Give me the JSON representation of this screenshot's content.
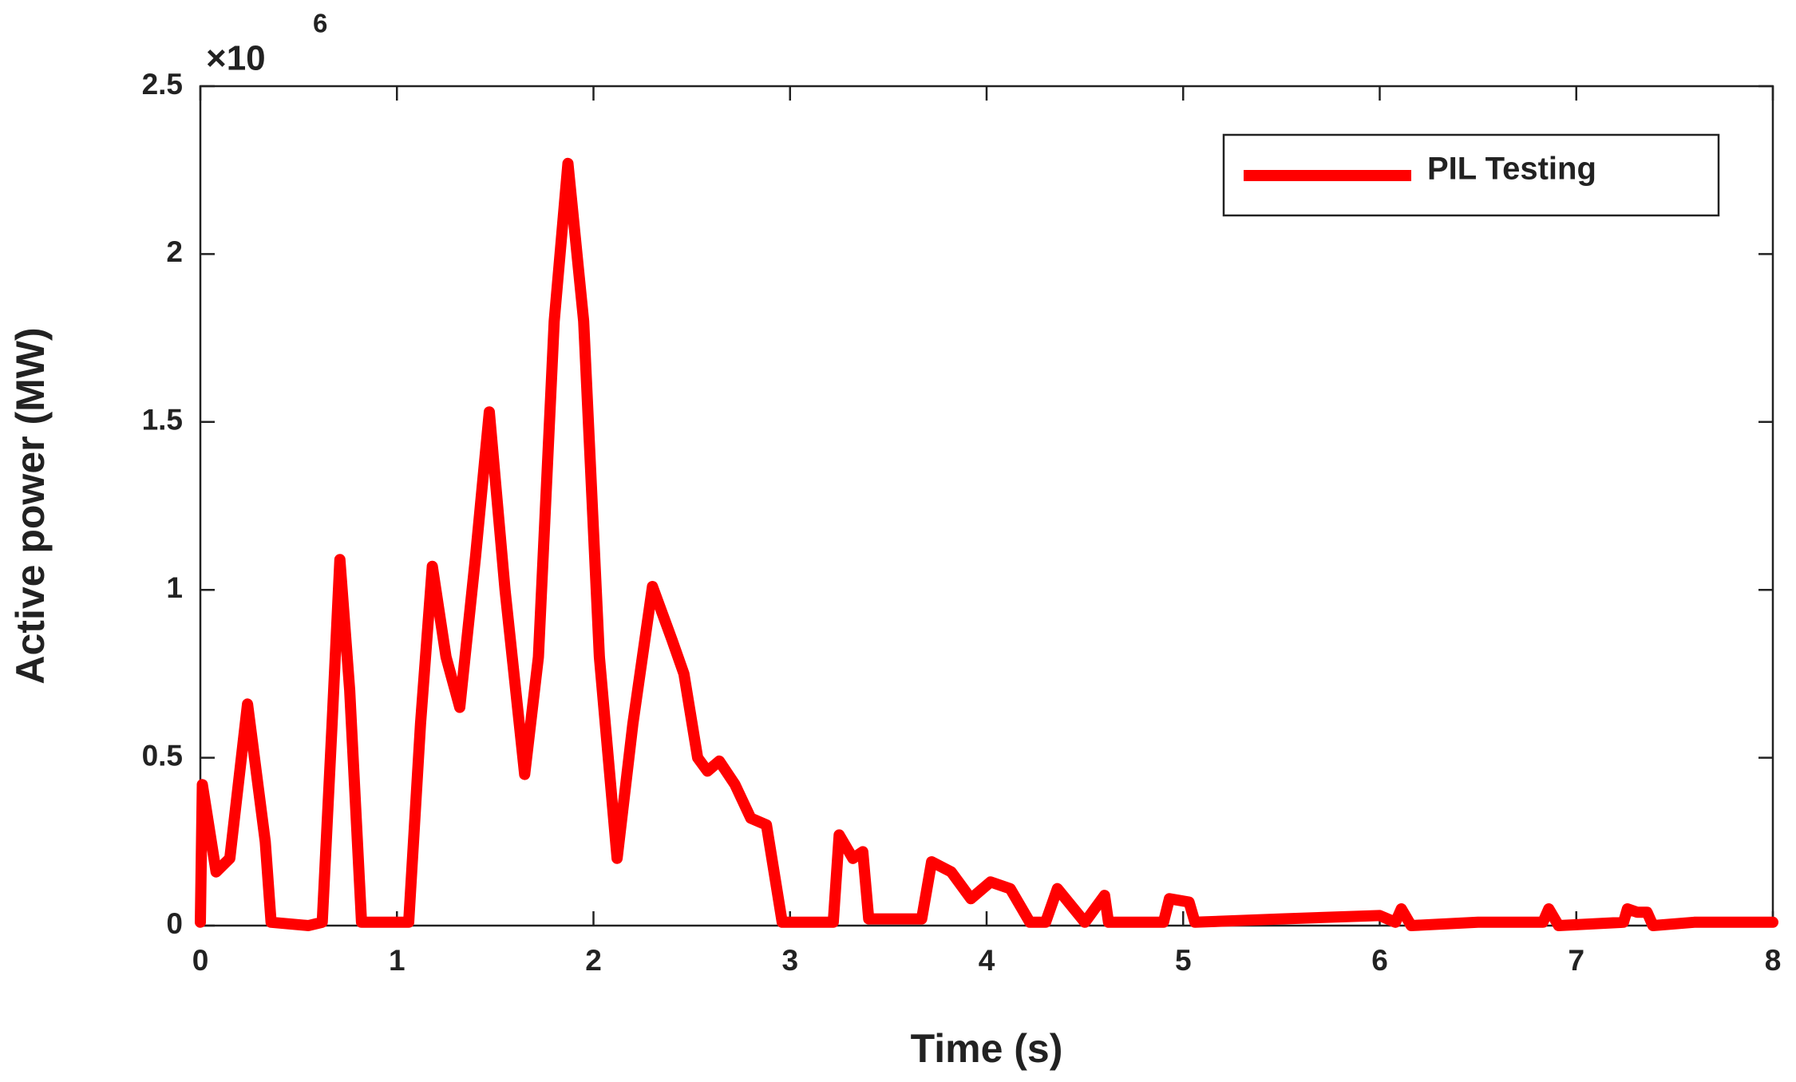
{
  "chart_data": {
    "type": "line",
    "x_label": "Time (s)",
    "y_label": "Active power (MW)",
    "y_multiplier_base": "×10",
    "y_multiplier_exponent": "6",
    "x": [
      0.0,
      0.01,
      0.08,
      0.15,
      0.24,
      0.33,
      0.36,
      0.55,
      0.62,
      0.67,
      0.71,
      0.76,
      0.82,
      1.0,
      1.06,
      1.12,
      1.18,
      1.25,
      1.32,
      1.4,
      1.47,
      1.55,
      1.65,
      1.72,
      1.8,
      1.87,
      1.95,
      2.03,
      2.12,
      2.2,
      2.3,
      2.4,
      2.46,
      2.53,
      2.58,
      2.64,
      2.72,
      2.8,
      2.88,
      2.96,
      3.22,
      3.25,
      3.32,
      3.37,
      3.4,
      3.67,
      3.72,
      3.82,
      3.92,
      4.02,
      4.12,
      4.22,
      4.3,
      4.36,
      4.5,
      4.6,
      4.62,
      4.9,
      4.93,
      5.03,
      5.06,
      5.5,
      6.0,
      6.08,
      6.11,
      6.16,
      6.5,
      6.83,
      6.86,
      6.91,
      7.24,
      7.26,
      7.31,
      7.36,
      7.39,
      7.6,
      8.0
    ],
    "series": [
      {
        "name": "PIL Testing",
        "color": "#ff0000",
        "values": [
          0.01,
          0.42,
          0.16,
          0.2,
          0.66,
          0.25,
          0.01,
          0.0,
          0.01,
          0.6,
          1.09,
          0.7,
          0.01,
          0.01,
          0.01,
          0.6,
          1.07,
          0.8,
          0.65,
          1.1,
          1.53,
          1.0,
          0.45,
          0.8,
          1.8,
          2.27,
          1.8,
          0.8,
          0.2,
          0.6,
          1.01,
          0.85,
          0.75,
          0.5,
          0.46,
          0.49,
          0.42,
          0.32,
          0.3,
          0.01,
          0.01,
          0.27,
          0.2,
          0.22,
          0.02,
          0.02,
          0.19,
          0.16,
          0.08,
          0.13,
          0.11,
          0.01,
          0.01,
          0.11,
          0.01,
          0.09,
          0.01,
          0.01,
          0.08,
          0.07,
          0.01,
          0.02,
          0.03,
          0.01,
          0.05,
          0.0,
          0.01,
          0.01,
          0.05,
          0.0,
          0.01,
          0.05,
          0.04,
          0.04,
          0.0,
          0.01,
          0.01
        ]
      }
    ],
    "xlim": [
      0,
      8
    ],
    "xticks": [
      0,
      1,
      2,
      3,
      4,
      5,
      6,
      7,
      8
    ],
    "ylim": [
      0,
      2.5
    ],
    "yticks": [
      0,
      0.5,
      1,
      1.5,
      2,
      2.5
    ],
    "grid": false,
    "legend_position": "upper right"
  }
}
